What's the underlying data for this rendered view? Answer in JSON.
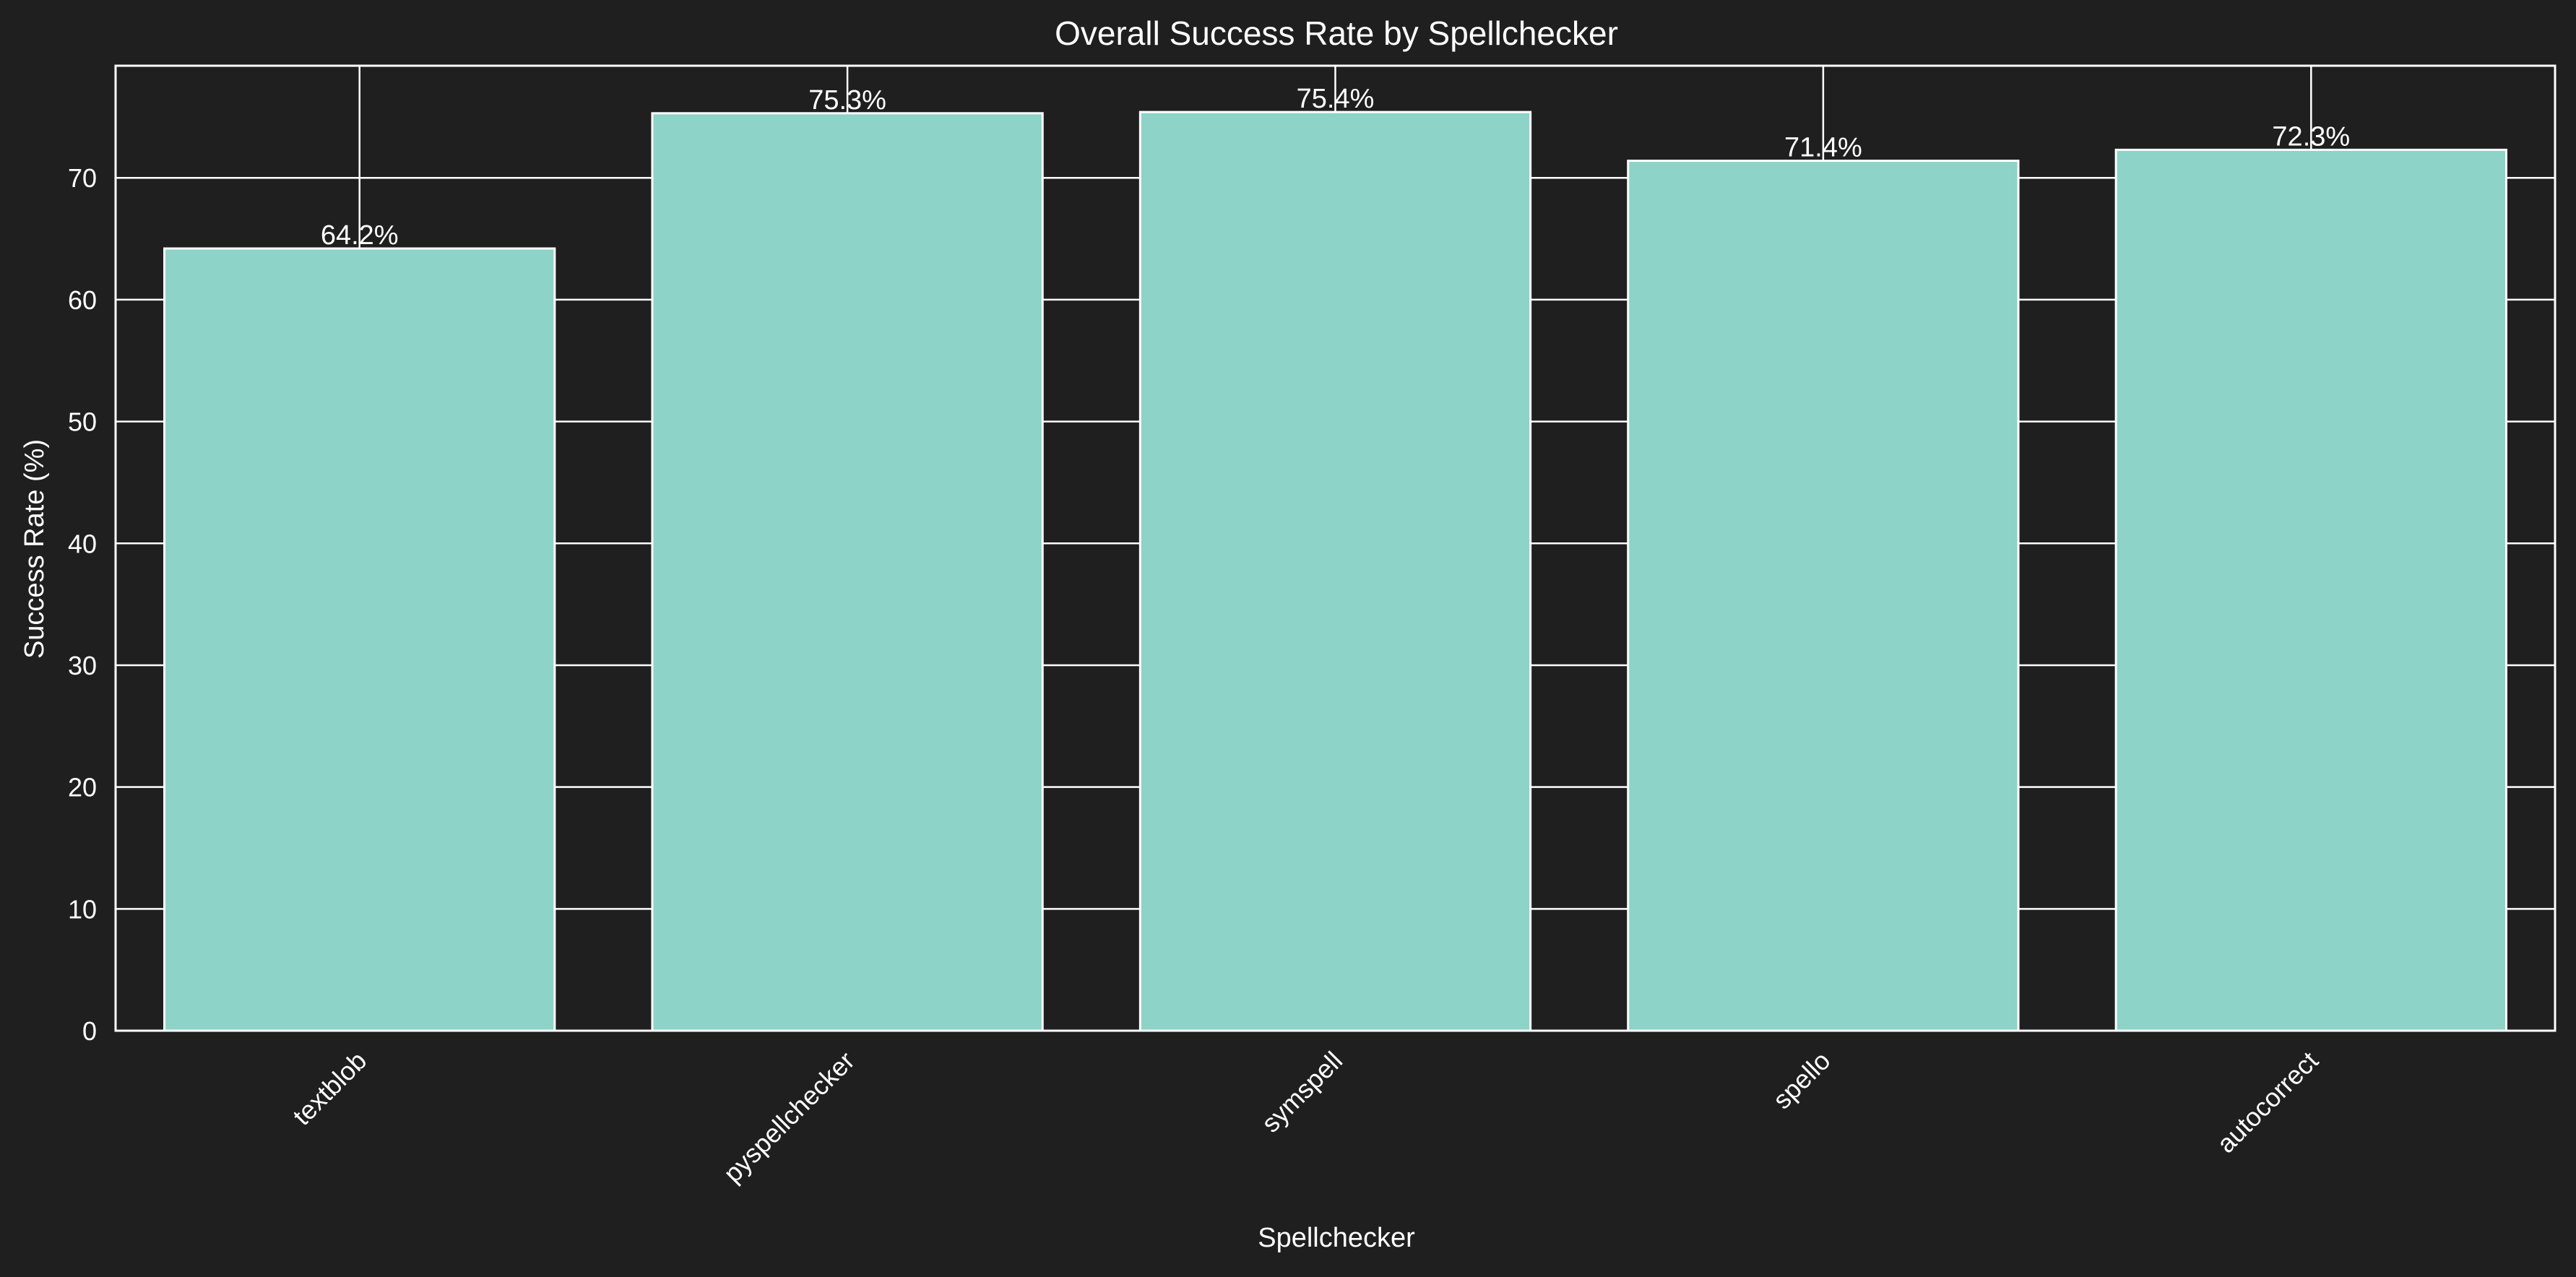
{
  "chart_data": {
    "type": "bar",
    "title": "Overall Success Rate by Spellchecker",
    "xlabel": "Spellchecker",
    "ylabel": "Success Rate (%)",
    "categories": [
      "textblob",
      "pyspellchecker",
      "symspell",
      "spello",
      "autocorrect"
    ],
    "values": [
      64.2,
      75.3,
      75.4,
      71.4,
      72.3
    ],
    "value_labels": [
      "64.2%",
      "75.3%",
      "75.4%",
      "71.4%",
      "72.3%"
    ],
    "ylim": [
      0,
      79.2
    ],
    "yticks": [
      0,
      10,
      20,
      30,
      40,
      50,
      60,
      70
    ],
    "ytick_labels": [
      "0",
      "10",
      "20",
      "30",
      "40",
      "50",
      "60",
      "70"
    ],
    "grid": true,
    "legend": "none",
    "x_tick_rotation_deg": 45,
    "colors": {
      "background": "#1f1f1f",
      "bar_fill": "#8dd3c7",
      "bar_edge": "#ffffff",
      "grid": "#ffffff",
      "text": "#ffffff"
    }
  }
}
